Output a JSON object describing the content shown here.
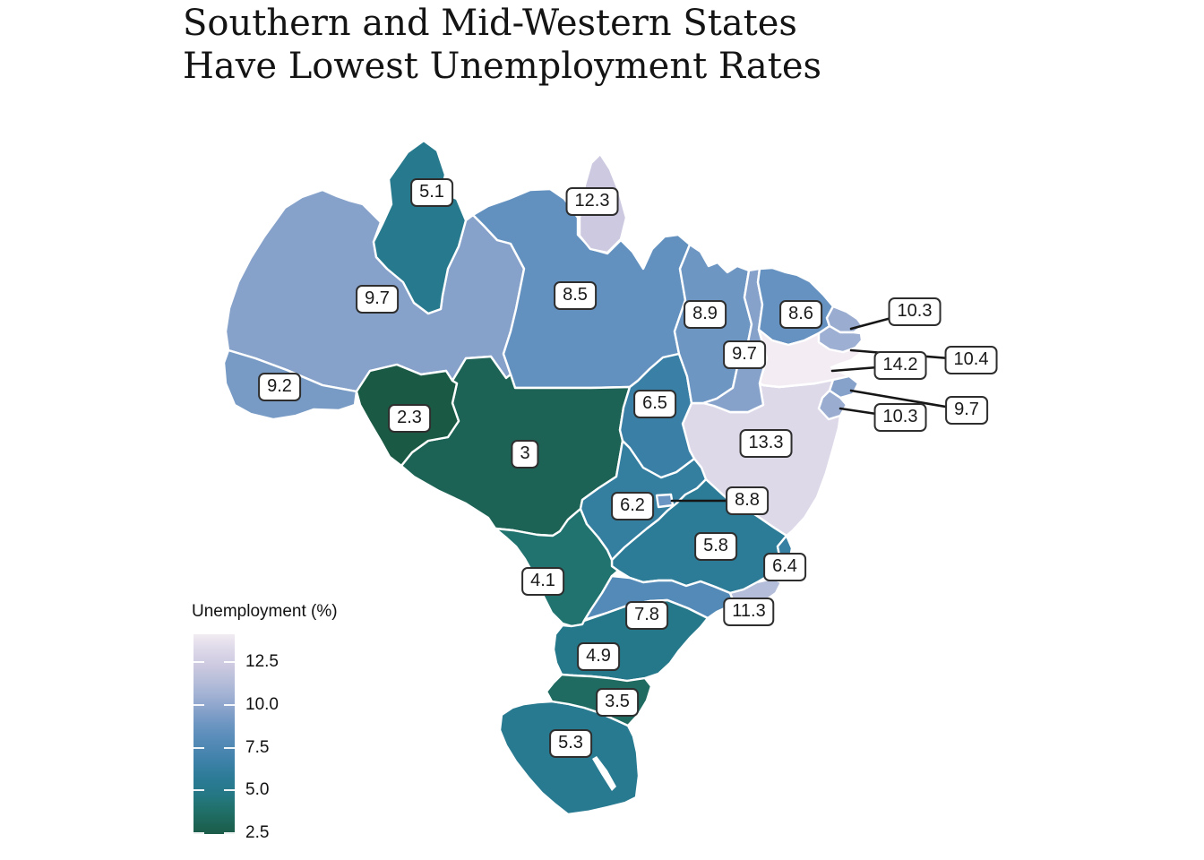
{
  "title": {
    "line1": "Southern and Mid-Western States",
    "line2": "Have Lowest Unemployment Rates"
  },
  "legend": {
    "title": "Unemployment (%)",
    "ticks": [
      {
        "label": "12.5",
        "value": 12.5
      },
      {
        "label": "10.0",
        "value": 10.0
      },
      {
        "label": "7.5",
        "value": 7.5
      },
      {
        "label": "5.0",
        "value": 5.0
      },
      {
        "label": "2.5",
        "value": 2.5
      }
    ]
  },
  "chart_data": {
    "type": "choropleth",
    "region": "Brazil, by state",
    "title": "Southern and Mid-Western States Have Lowest Unemployment Rates",
    "legend_title": "Unemployment (%)",
    "legend_position": "bottom-left",
    "colorbar_ticks": [
      12.5,
      10.0,
      7.5,
      5.0,
      2.5
    ],
    "colorbar_value_range": [
      2.45,
      14.12
    ],
    "state_border_color": "#ffffff",
    "background_color": "#ffffff",
    "callout_line_color": "#161616",
    "color_stops": [
      [
        2.3,
        "#1a5a45"
      ],
      [
        3.0,
        "#1d6355"
      ],
      [
        3.5,
        "#1f6b61"
      ],
      [
        4.1,
        "#217370"
      ],
      [
        5.0,
        "#26798c"
      ],
      [
        5.8,
        "#2c7b97"
      ],
      [
        6.5,
        "#3a80a6"
      ],
      [
        7.5,
        "#4e87b3"
      ],
      [
        8.6,
        "#6592c0"
      ],
      [
        9.7,
        "#87a2ca"
      ],
      [
        10.4,
        "#9dafd2"
      ],
      [
        11.3,
        "#b4bdd9"
      ],
      [
        12.3,
        "#cdc9e0"
      ],
      [
        13.3,
        "#ded9e9"
      ],
      [
        14.2,
        "#f3edf3"
      ]
    ],
    "series": [
      {
        "id": "am",
        "state": "Amazonas",
        "value": 9.7,
        "label": "9.7"
      },
      {
        "id": "pa",
        "state": "Pará",
        "value": 8.5,
        "label": "8.5"
      },
      {
        "id": "mt",
        "state": "Mato Grosso",
        "value": 3,
        "label": "3"
      },
      {
        "id": "ba",
        "state": "Bahia",
        "value": 13.3,
        "label": "13.3"
      },
      {
        "id": "mg",
        "state": "Minas Gerais",
        "value": 5.8,
        "label": "5.8"
      },
      {
        "id": "ms",
        "state": "Mato Grosso do Sul",
        "value": 4.1,
        "label": "4.1"
      },
      {
        "id": "go",
        "state": "Goiás",
        "value": 6.2,
        "label": "6.2"
      },
      {
        "id": "to",
        "state": "Tocantins",
        "value": 6.5,
        "label": "6.5"
      },
      {
        "id": "ma",
        "state": "Maranhão",
        "value": 8.9,
        "label": "8.9"
      },
      {
        "id": "pi",
        "state": "Piauí",
        "value": 9.7,
        "label": "9.7"
      },
      {
        "id": "ce",
        "state": "Ceará",
        "value": 8.6,
        "label": "8.6"
      },
      {
        "id": "sp",
        "state": "São Paulo",
        "value": 7.8,
        "label": "7.8"
      },
      {
        "id": "pr",
        "state": "Paraná",
        "value": 4.9,
        "label": "4.9"
      },
      {
        "id": "rs",
        "state": "Rio Grande do Sul",
        "value": 5.3,
        "label": "5.3"
      },
      {
        "id": "sc",
        "state": "Santa Catarina",
        "value": 3.5,
        "label": "3.5"
      },
      {
        "id": "rj",
        "state": "Rio de Janeiro",
        "value": 11.3,
        "label": "11.3"
      },
      {
        "id": "es",
        "state": "Espírito Santo",
        "value": 6.4,
        "label": "6.4"
      },
      {
        "id": "ac",
        "state": "Acre",
        "value": 9.2,
        "label": "9.2"
      },
      {
        "id": "ro",
        "state": "Rondônia",
        "value": 2.3,
        "label": "2.3"
      },
      {
        "id": "rr",
        "state": "Roraima",
        "value": 5.1,
        "label": "5.1"
      },
      {
        "id": "ap",
        "state": "Amapá",
        "value": 12.3,
        "label": "12.3"
      },
      {
        "id": "pe",
        "state": "Pernambuco",
        "value": 14.2,
        "label": "14.2"
      },
      {
        "id": "rn",
        "state": "Rio Grande do Norte",
        "value": 10.3,
        "label": "10.3"
      },
      {
        "id": "pb",
        "state": "Paraíba",
        "value": 10.4,
        "label": "10.4"
      },
      {
        "id": "al",
        "state": "Alagoas",
        "value": 9.7,
        "label": "9.7"
      },
      {
        "id": "se",
        "state": "Sergipe",
        "value": 10.3,
        "label": "10.3"
      },
      {
        "id": "df",
        "state": "Distrito Federal",
        "value": 8.8,
        "label": "8.8"
      }
    ]
  }
}
